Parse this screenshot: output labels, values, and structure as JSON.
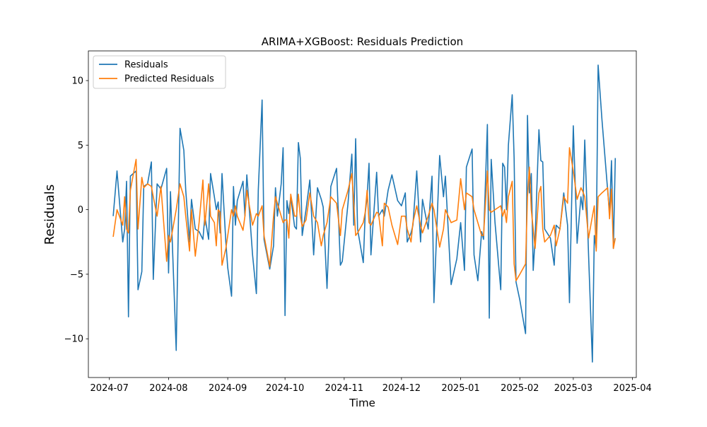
{
  "chart_data": {
    "type": "line",
    "title": "ARIMA+XGBoost: Residuals Prediction",
    "x_label": "Time",
    "y_label": "Residuals",
    "x": [
      "2024-07-03",
      "2024-07-05",
      "2024-07-08",
      "2024-07-09",
      "2024-07-10",
      "2024-07-11",
      "2024-07-12",
      "2024-07-15",
      "2024-07-16",
      "2024-07-18",
      "2024-07-19",
      "2024-07-21",
      "2024-07-23",
      "2024-07-24",
      "2024-07-26",
      "2024-07-28",
      "2024-07-31",
      "2024-08-01",
      "2024-08-02",
      "2024-08-05",
      "2024-08-07",
      "2024-08-09",
      "2024-08-10",
      "2024-08-12",
      "2024-08-13",
      "2024-08-15",
      "2024-08-17",
      "2024-08-19",
      "2024-08-20",
      "2024-08-22",
      "2024-08-23",
      "2024-08-25",
      "2024-08-26",
      "2024-08-27",
      "2024-08-28",
      "2024-08-29",
      "2024-08-31",
      "2024-09-01",
      "2024-09-03",
      "2024-09-04",
      "2024-09-05",
      "2024-09-06",
      "2024-09-09",
      "2024-09-10",
      "2024-09-11",
      "2024-09-14",
      "2024-09-16",
      "2024-09-17",
      "2024-09-19",
      "2024-09-20",
      "2024-09-23",
      "2024-09-25",
      "2024-09-26",
      "2024-09-27",
      "2024-09-29",
      "2024-09-30",
      "2024-10-01",
      "2024-10-02",
      "2024-10-03",
      "2024-10-04",
      "2024-10-06",
      "2024-10-07",
      "2024-10-08",
      "2024-10-09",
      "2024-10-10",
      "2024-10-12",
      "2024-10-14",
      "2024-10-16",
      "2024-10-18",
      "2024-10-20",
      "2024-10-21",
      "2024-10-23",
      "2024-10-25",
      "2024-10-28",
      "2024-10-30",
      "2024-10-31",
      "2024-11-03",
      "2024-11-05",
      "2024-11-06",
      "2024-11-07",
      "2024-11-08",
      "2024-11-11",
      "2024-11-12",
      "2024-11-13",
      "2024-11-14",
      "2024-11-15",
      "2024-11-18",
      "2024-11-19",
      "2024-11-21",
      "2024-11-22",
      "2024-11-24",
      "2024-11-26",
      "2024-11-29",
      "2024-12-01",
      "2024-12-03",
      "2024-12-04",
      "2024-12-06",
      "2024-12-07",
      "2024-12-09",
      "2024-12-11",
      "2024-12-12",
      "2024-12-15",
      "2024-12-17",
      "2024-12-18",
      "2024-12-21",
      "2024-12-23",
      "2024-12-24",
      "2024-12-27",
      "2024-12-30",
      "2025-01-01",
      "2025-01-03",
      "2025-01-04",
      "2025-01-07",
      "2025-01-08",
      "2025-01-10",
      "2025-01-12",
      "2025-01-13",
      "2025-01-15",
      "2025-01-16",
      "2025-01-17",
      "2025-01-19",
      "2025-01-22",
      "2025-01-23",
      "2025-01-24",
      "2025-01-25",
      "2025-01-26",
      "2025-01-28",
      "2025-01-29",
      "2025-01-30",
      "2025-02-01",
      "2025-02-04",
      "2025-02-05",
      "2025-02-06",
      "2025-02-07",
      "2025-02-08",
      "2025-02-09",
      "2025-02-11",
      "2025-02-12",
      "2025-02-13",
      "2025-02-14",
      "2025-02-17",
      "2025-02-19",
      "2025-02-20",
      "2025-02-22",
      "2025-02-24",
      "2025-02-26",
      "2025-02-27",
      "2025-03-01",
      "2025-03-03",
      "2025-03-05",
      "2025-03-06",
      "2025-03-07",
      "2025-03-09",
      "2025-03-11",
      "2025-03-12",
      "2025-03-13",
      "2025-03-14",
      "2025-03-16",
      "2025-03-19",
      "2025-03-20",
      "2025-03-21",
      "2025-03-22",
      "2025-03-23"
    ],
    "series": [
      {
        "name": "Residuals",
        "color": "#1f77b4",
        "values": [
          -0.5,
          3.0,
          -2.5,
          -1.5,
          2.2,
          -8.3,
          2.6,
          3.0,
          -6.2,
          -4.8,
          1.8,
          2.0,
          3.7,
          -5.4,
          2.0,
          1.6,
          3.2,
          -4.9,
          1.4,
          -10.9,
          6.3,
          4.6,
          1.5,
          -2.5,
          0.8,
          -1.5,
          -1.7,
          -2.3,
          -0.5,
          -2.3,
          2.8,
          1.0,
          0.0,
          0.6,
          -1.8,
          2.8,
          -2.5,
          -4.5,
          -6.7,
          1.8,
          -1.2,
          0.7,
          2.2,
          -0.5,
          2.7,
          -3.5,
          -6.5,
          1.5,
          8.5,
          -2.3,
          -4.6,
          -2.8,
          1.7,
          -0.5,
          2.0,
          4.8,
          -8.2,
          0.7,
          -0.3,
          1.0,
          -1.3,
          -1.5,
          5.2,
          4.0,
          -2.0,
          0.0,
          2.3,
          -3.5,
          1.7,
          0.8,
          0.2,
          -6.1,
          1.8,
          3.2,
          -4.3,
          -4.0,
          0.5,
          4.3,
          -1.2,
          5.5,
          -1.5,
          -4.1,
          -0.3,
          1.0,
          3.6,
          -3.5,
          2.9,
          -0.5,
          0.0,
          -0.5,
          1.5,
          2.7,
          0.7,
          0.3,
          1.3,
          -2.5,
          -1.8,
          -1.2,
          3.0,
          -2.5,
          0.8,
          -1.5,
          2.6,
          -7.2,
          4.2,
          1.0,
          2.6,
          -5.8,
          -3.8,
          -1.0,
          -4.7,
          3.3,
          4.7,
          -3.5,
          -5.5,
          -1.7,
          -2.3,
          6.6,
          -8.4,
          3.9,
          -1.0,
          -6.2,
          3.6,
          3.3,
          0.0,
          5.0,
          8.9,
          4.0,
          -5.6,
          -7.0,
          -9.6,
          7.3,
          1.3,
          2.8,
          -4.7,
          -2.2,
          6.2,
          3.8,
          3.7,
          -1.5,
          -2.2,
          -4.3,
          -1.2,
          -1.5,
          1.3,
          -1.2,
          -7.2,
          6.5,
          -2.6,
          1.0,
          0.0,
          5.4,
          -3.5,
          -11.8,
          -2.0,
          -3.0,
          11.2,
          7.0,
          1.5,
          -0.3,
          3.8,
          -3.0,
          4.0
        ]
      },
      {
        "name": "Predicted Residuals",
        "color": "#ff7f0e",
        "values": [
          -2.1,
          0.0,
          -1.2,
          1.0,
          -1.5,
          -1.8,
          1.5,
          3.9,
          -1.5,
          2.5,
          1.7,
          2.0,
          1.8,
          1.0,
          -0.5,
          1.8,
          -4.0,
          -2.0,
          -2.5,
          0.0,
          2.0,
          1.0,
          -0.5,
          -3.2,
          0.0,
          -3.6,
          -1.0,
          2.3,
          -1.2,
          2.0,
          -0.5,
          -1.0,
          -2.8,
          0.0,
          -0.2,
          -4.3,
          -3.0,
          -2.0,
          0.0,
          -0.5,
          0.3,
          -0.5,
          -1.6,
          -0.5,
          1.5,
          -1.2,
          -0.3,
          -0.5,
          0.3,
          -2.0,
          -4.4,
          -0.5,
          1.0,
          0.5,
          -0.5,
          -1.0,
          -0.8,
          -0.8,
          -2.2,
          1.2,
          -0.5,
          -0.5,
          1.2,
          -0.5,
          -1.3,
          -0.8,
          1.3,
          -0.5,
          -1.0,
          -2.8,
          -2.0,
          -1.0,
          1.0,
          0.5,
          -2.0,
          0.0,
          1.5,
          2.8,
          0.5,
          -2.0,
          -1.8,
          -1.0,
          -0.2,
          1.5,
          -1.0,
          -1.2,
          -0.2,
          -0.3,
          -2.8,
          0.5,
          0.2,
          -1.2,
          -2.7,
          -0.5,
          -0.5,
          -1.5,
          -2.5,
          -1.0,
          0.3,
          -1.2,
          -1.8,
          -0.5,
          0.5,
          0.0,
          -2.9,
          -1.5,
          0.0,
          -1.0,
          -0.8,
          2.4,
          0.0,
          1.3,
          1.0,
          0.0,
          -1.0,
          -2.0,
          -2.0,
          3.0,
          0.0,
          -0.2,
          0.0,
          0.3,
          -0.5,
          0.0,
          -1.0,
          1.0,
          2.2,
          -4.2,
          -5.5,
          -5.0,
          -4.2,
          1.0,
          3.3,
          0.0,
          -1.5,
          -3.0,
          1.3,
          1.8,
          -1.5,
          -2.5,
          -2.0,
          -1.2,
          -2.8,
          -1.5,
          1.0,
          0.5,
          4.8,
          3.0,
          0.8,
          1.7,
          1.4,
          1.0,
          -2.2,
          -0.5,
          0.3,
          -3.2,
          1.0,
          1.3,
          1.7,
          -0.7,
          1.6,
          -3.0,
          -2.2
        ]
      }
    ],
    "xlim": [
      "2024-06-20",
      "2025-04-03"
    ],
    "xticks": [
      "2024-07",
      "2024-08",
      "2024-09",
      "2024-10",
      "2024-11",
      "2024-12",
      "2025-01",
      "2025-02",
      "2025-03",
      "2025-04"
    ],
    "ylim": [
      -13.0,
      12.3
    ],
    "yticks": [
      {
        "value": -10,
        "label": "−10"
      },
      {
        "value": -5,
        "label": "−5"
      },
      0,
      5,
      10
    ],
    "legend": "upper left",
    "grid": false
  }
}
